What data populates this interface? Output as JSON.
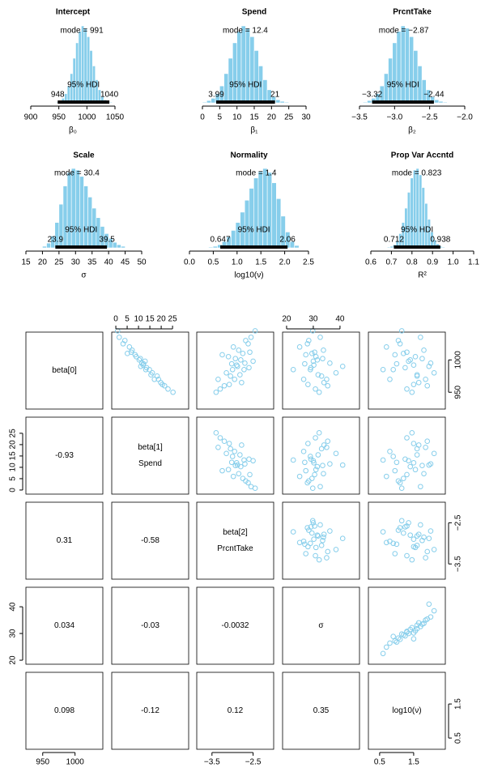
{
  "chart_data": [
    {
      "type": "histogram",
      "title": "Intercept",
      "xlabel": "β₀",
      "color": "#87ceeb",
      "bins": [
        945,
        950,
        955,
        960,
        965,
        970,
        975,
        980,
        985,
        990,
        995,
        1000,
        1005,
        1010,
        1015,
        1020,
        1025,
        1030,
        1035,
        1040,
        1045
      ],
      "counts": [
        1,
        3,
        6,
        12,
        22,
        38,
        58,
        78,
        93,
        100,
        97,
        86,
        68,
        48,
        30,
        17,
        8,
        4,
        2,
        1
      ],
      "xlim": [
        900,
        1050
      ],
      "xticks": [
        900,
        950,
        1000,
        1050
      ],
      "mode": {
        "value": 991,
        "label": "mode = 991"
      },
      "hdi": [
        948,
        1040
      ],
      "hdi_text": "95% HDI"
    },
    {
      "type": "histogram",
      "title": "Spend",
      "xlabel": "β₁",
      "color": "#87ceeb",
      "bins": [
        0,
        1.25,
        2.5,
        3.75,
        5,
        6.25,
        7.5,
        8.75,
        10,
        11.25,
        12.5,
        13.75,
        15,
        16.25,
        17.5,
        18.75,
        20,
        21.25,
        22.5,
        23.75,
        25
      ],
      "counts": [
        1,
        3,
        6,
        12,
        22,
        38,
        58,
        78,
        93,
        100,
        97,
        86,
        68,
        48,
        30,
        17,
        8,
        4,
        2,
        1
      ],
      "xlim": [
        0,
        30
      ],
      "xticks": [
        0,
        5,
        10,
        15,
        20,
        25,
        30
      ],
      "mode": {
        "value": 12.4,
        "label": "mode = 12.4"
      },
      "hdi": [
        3.99,
        21
      ],
      "hdi_text": "95% HDI"
    },
    {
      "type": "histogram",
      "title": "PrcntTake",
      "xlabel": "β₂",
      "color": "#87ceeb",
      "bins": [
        -3.45,
        -3.39,
        -3.33,
        -3.27,
        -3.21,
        -3.15,
        -3.09,
        -3.03,
        -2.97,
        -2.91,
        -2.85,
        -2.79,
        -2.73,
        -2.67,
        -2.61,
        -2.55,
        -2.49,
        -2.43,
        -2.37,
        -2.31,
        -2.25
      ],
      "counts": [
        1,
        3,
        6,
        12,
        22,
        38,
        58,
        78,
        93,
        100,
        97,
        86,
        68,
        48,
        30,
        17,
        8,
        4,
        2,
        1
      ],
      "xlim": [
        -3.5,
        -2.0
      ],
      "xticks": [
        {
          "value": -3.5,
          "label": "−3.5"
        },
        {
          "value": -3.0,
          "label": "−3.0"
        },
        {
          "value": -2.5,
          "label": "−2.5"
        },
        {
          "value": -2.0,
          "label": "−2.0"
        }
      ],
      "mode": {
        "value": -2.87,
        "label": "mode = −2.87"
      },
      "hdi": [
        {
          "value": -3.32,
          "label": "−3.32"
        },
        {
          "value": -2.44,
          "label": "−2.44"
        }
      ],
      "hdi_text": "95% HDI"
    },
    {
      "type": "histogram",
      "title": "Scale",
      "xlabel": "σ",
      "color": "#87ceeb",
      "bins": [
        20,
        21.25,
        22.5,
        23.75,
        25,
        26.25,
        27.5,
        28.75,
        30,
        31.25,
        32.5,
        33.75,
        35,
        36.25,
        37.5,
        38.75,
        40,
        41.25,
        42.5,
        43.75,
        45
      ],
      "counts": [
        2,
        6,
        15,
        32,
        55,
        78,
        95,
        100,
        98,
        90,
        78,
        64,
        50,
        38,
        27,
        18,
        12,
        7,
        4,
        2
      ],
      "xlim": [
        15,
        50
      ],
      "xticks": [
        15,
        20,
        25,
        30,
        35,
        40,
        45,
        50
      ],
      "mode": {
        "value": 30.4,
        "label": "mode = 30.4"
      },
      "hdi": [
        23.9,
        39.5
      ],
      "hdi_text": "95% HDI"
    },
    {
      "type": "histogram",
      "title": "Normality",
      "xlabel": "log10(ν)",
      "color": "#87ceeb",
      "bins": [
        0.4,
        0.495,
        0.59,
        0.685,
        0.78,
        0.875,
        0.97,
        1.065,
        1.16,
        1.255,
        1.35,
        1.445,
        1.54,
        1.635,
        1.73,
        1.825,
        1.92,
        2.015,
        2.11,
        2.205,
        2.3
      ],
      "counts": [
        1,
        2,
        4,
        8,
        14,
        22,
        32,
        45,
        60,
        75,
        88,
        96,
        100,
        95,
        82,
        62,
        40,
        20,
        8,
        3
      ],
      "xlim": [
        0,
        2.5
      ],
      "xticks": [
        {
          "value": 0,
          "label": "0.0"
        },
        0.5,
        {
          "value": 1,
          "label": "1.0"
        },
        1.5,
        {
          "value": 2,
          "label": "2.0"
        },
        2.5
      ],
      "mode": {
        "value": 1.4,
        "label": "mode = 1.4"
      },
      "hdi": [
        0.647,
        2.06
      ],
      "hdi_text": "95% HDI"
    },
    {
      "type": "histogram",
      "title": "Prop Var Accntd",
      "xlabel": "R²",
      "color": "#87ceeb",
      "bins": [
        0.68,
        0.694,
        0.708,
        0.722,
        0.736,
        0.75,
        0.764,
        0.778,
        0.792,
        0.806,
        0.82,
        0.834,
        0.848,
        0.862,
        0.876,
        0.89,
        0.904,
        0.918,
        0.932,
        0.946,
        0.96
      ],
      "counts": [
        1,
        2,
        4,
        9,
        18,
        32,
        50,
        70,
        88,
        98,
        100,
        92,
        76,
        56,
        36,
        20,
        10,
        5,
        2,
        1
      ],
      "xlim": [
        0.6,
        1.1
      ],
      "xticks": [
        0.6,
        0.7,
        0.8,
        0.9,
        {
          "value": 1,
          "label": "1.0"
        },
        1.1
      ],
      "mode": {
        "value": 0.823,
        "label": "mode = 0.823"
      },
      "hdi": [
        0.712,
        0.938
      ],
      "hdi_text": "95% HDI"
    },
    {
      "type": "pairs",
      "color": "#87ceeb",
      "variables": [
        {
          "label": [
            "beta[0]"
          ],
          "lim": [
            924,
            1043
          ],
          "ticks": [
            950,
            1000
          ]
        },
        {
          "label": [
            "beta[1]",
            "Spend"
          ],
          "lim": [
            -1.8,
            32.1
          ],
          "ticks": [
            0,
            5,
            10,
            15,
            20,
            25
          ]
        },
        {
          "label": [
            "beta[2]",
            "PrcntTake"
          ],
          "lim": [
            -3.87,
            -2.0
          ],
          "ticks": [
            {
              "value": -3.5,
              "label": "−3.5"
            },
            {
              "value": -2.5,
              "label": "−2.5"
            }
          ]
        },
        {
          "label": [
            "σ"
          ],
          "lim": [
            18.5,
            47.3
          ],
          "ticks": [
            20,
            30,
            40
          ]
        },
        {
          "label": [
            "log10(ν)"
          ],
          "lim": [
            0.17,
            2.43
          ],
          "ticks": [
            0.5,
            1.5
          ]
        }
      ],
      "correlations": [
        [
          -0.93
        ],
        [
          0.31,
          -0.58
        ],
        [
          0.034,
          -0.03,
          -0.0032
        ],
        [
          0.098,
          -0.12,
          0.12,
          0.35
        ]
      ],
      "samples": [
        [
          1010,
          5.1,
          -2.75,
          29.5,
          1.2
        ],
        [
          975,
          18.2,
          -3.05,
          33.1,
          1.6
        ],
        [
          992,
          12.0,
          -2.9,
          30.2,
          1.5
        ],
        [
          1025,
          3.2,
          -2.62,
          27.8,
          1.1
        ],
        [
          960,
          21.5,
          -3.2,
          35.4,
          1.9
        ],
        [
          1000,
          10.3,
          -2.8,
          31.5,
          1.4
        ],
        [
          985,
          14.8,
          -3.0,
          28.9,
          0.9
        ],
        [
          1035,
          1.5,
          -2.55,
          32.6,
          1.7
        ],
        [
          955,
          23.0,
          -3.3,
          30.8,
          1.3
        ],
        [
          995,
          11.5,
          -2.7,
          36.2,
          2.0
        ],
        [
          970,
          17.0,
          -2.95,
          26.4,
          0.8
        ],
        [
          1015,
          7.2,
          -2.85,
          33.8,
          1.8
        ],
        [
          988,
          13.6,
          -2.6,
          29.1,
          1.25
        ],
        [
          1005,
          9.0,
          -3.1,
          31.0,
          1.55
        ],
        [
          965,
          19.8,
          -2.78,
          34.0,
          1.65
        ],
        [
          1020,
          6.0,
          -2.98,
          24.9,
          0.7
        ],
        [
          980,
          16.1,
          -3.15,
          38.5,
          2.1
        ],
        [
          998,
          12.9,
          -2.5,
          30.0,
          1.35
        ],
        [
          950,
          25.2,
          -3.4,
          32.2,
          1.45
        ],
        [
          1030,
          4.0,
          -2.68,
          28.3,
          1.05
        ],
        [
          990,
          11.0,
          -2.88,
          41.0,
          1.95
        ],
        [
          1008,
          8.5,
          -3.25,
          27.2,
          0.95
        ],
        [
          977,
          15.5,
          -2.82,
          31.8,
          1.6
        ],
        [
          1045,
          0.8,
          -2.45,
          29.8,
          1.15
        ],
        [
          962,
          20.5,
          -3.08,
          28.0,
          1.5
        ],
        [
          1002,
          10.8,
          -2.93,
          33.5,
          1.75
        ],
        [
          985,
          13.2,
          -2.72,
          22.5,
          0.6
        ],
        [
          970,
          18.8,
          -3.35,
          35.0,
          1.85
        ],
        [
          1012,
          6.8,
          -2.58,
          30.5,
          1.3
        ],
        [
          994,
          12.2,
          -3.02,
          26.8,
          1.0
        ]
      ]
    }
  ]
}
